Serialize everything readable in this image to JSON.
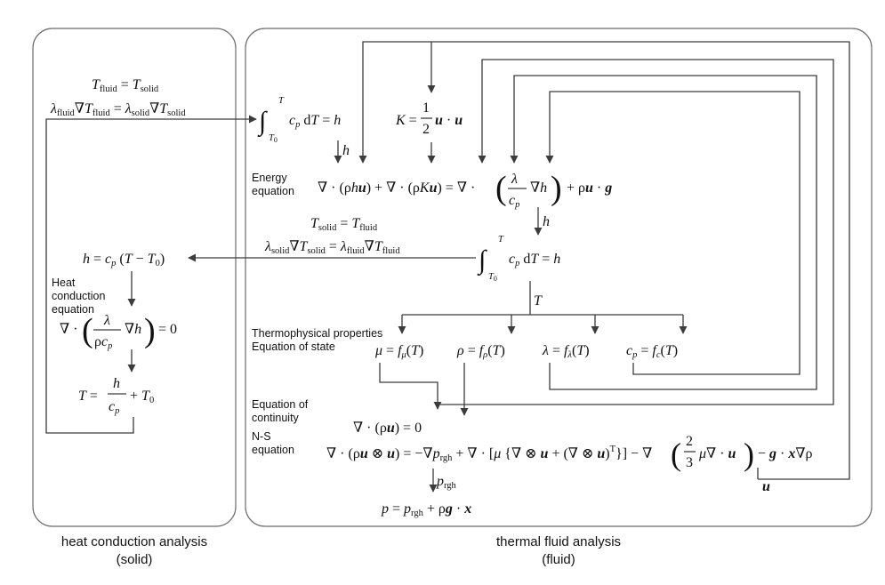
{
  "captions": {
    "solid_line1": "heat conduction analysis",
    "solid_line2": "(solid)",
    "fluid_line1": "thermal fluid analysis",
    "fluid_line2": "(fluid)"
  },
  "labels": {
    "energy_line1": "Energy",
    "energy_line2": "equation",
    "heatcond_line1": "Heat",
    "heatcond_line2": "conduction",
    "heatcond_line3": "equation",
    "thermo_line1": "Thermophysical properties",
    "thermo_line2": "Equation of state",
    "continuity_line1": "Equation of",
    "continuity_line2": "continuity",
    "ns_line1": "N-S",
    "ns_line2": "equation"
  },
  "edge_labels": {
    "h1": "h",
    "h2": "h",
    "T": "T",
    "prgh": "p",
    "prgh_sub": "rgh",
    "u": "u"
  },
  "equations": {
    "iface_fluid_T": "T_fluid = T_solid",
    "iface_fluid_flux": "λ_fluid ∇T_fluid = λ_solid ∇T_solid",
    "iface_solid_T": "T_solid = T_fluid",
    "iface_solid_flux": "λ_solid ∇T_solid = λ_fluid ∇T_fluid",
    "enthalpy_integral": "∫_{T0}^{T} c_p dT = h",
    "kinetic": "K = (1/2) u · u",
    "energy": "∇·(ρhu) + ∇·(ρKu) = ∇·((λ/c_p)∇h) + ρu·g",
    "solid_enthalpy": "h = c_p (T − T0)",
    "heat_conduction": "∇·((λ/(ρc_p))∇h) = 0",
    "solid_temperature": "T = h/c_p + T0",
    "mu": "μ = f_μ(T)",
    "rho": "ρ = f_ρ(T)",
    "lambda": "λ = f_λ(T)",
    "cp": "c_p = f_c(T)",
    "continuity": "∇·(ρu) = 0",
    "ns": "∇·(ρu⊗u) = −∇p_rgh + ∇·[μ{∇⊗u + (∇⊗u)^T}] − ∇((2/3)μ∇·u) − g·x∇ρ",
    "pressure": "p = p_rgh + ρg·x"
  },
  "colors": {
    "box": "#6b6b6b",
    "line": "#3c3c3c",
    "text": "#111111"
  }
}
